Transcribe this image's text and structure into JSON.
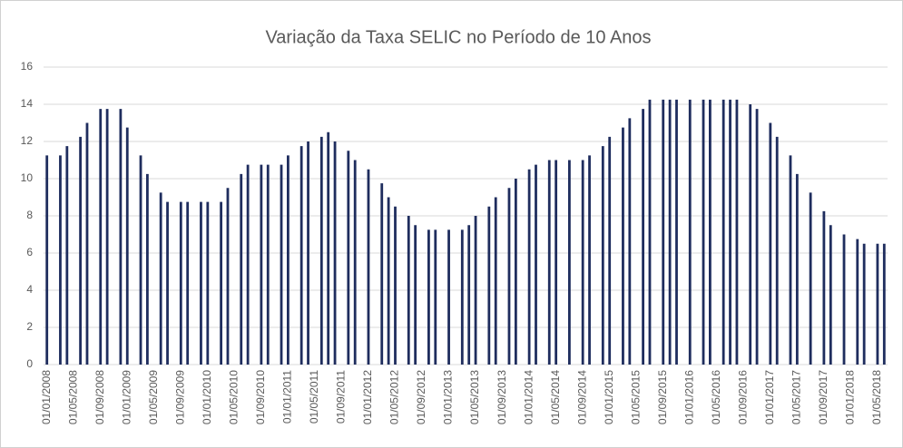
{
  "chart_data": {
    "type": "bar",
    "title": "Variação da Taxa SELIC no Período de 10 Anos",
    "categories": [
      "01/01/2008",
      null,
      null,
      null,
      "01/05/2008",
      null,
      null,
      null,
      "01/09/2008",
      null,
      null,
      null,
      "01/01/2009",
      null,
      null,
      null,
      "01/05/2009",
      null,
      null,
      null,
      "01/09/2009",
      null,
      null,
      null,
      "01/01/2010",
      null,
      null,
      null,
      "01/05/2010",
      null,
      null,
      null,
      "01/09/2010",
      null,
      null,
      null,
      "01/01/2011",
      null,
      null,
      null,
      "01/05/2011",
      null,
      null,
      null,
      "01/09/2011",
      null,
      null,
      null,
      "01/01/2012",
      null,
      null,
      null,
      "01/05/2012",
      null,
      null,
      null,
      "01/09/2012",
      null,
      null,
      null,
      "01/01/2013",
      null,
      null,
      null,
      "01/05/2013",
      null,
      null,
      null,
      "01/09/2013",
      null,
      null,
      null,
      "01/01/2014",
      null,
      null,
      null,
      "01/05/2014",
      null,
      null,
      null,
      "01/09/2014",
      null,
      null,
      null,
      "01/01/2015",
      null,
      null,
      null,
      "01/05/2015",
      null,
      null,
      null,
      "01/09/2015",
      null,
      null,
      null,
      "01/01/2016",
      null,
      null,
      null,
      "01/05/2016",
      null,
      null,
      null,
      "01/09/2016",
      null,
      null,
      null,
      "01/01/2017",
      null,
      null,
      null,
      "01/05/2017",
      null,
      null,
      null,
      "01/09/2017",
      null,
      null,
      null,
      "01/01/2018",
      null,
      null,
      null,
      "01/05/2018",
      null
    ],
    "values": [
      11.25,
      null,
      11.25,
      11.75,
      null,
      12.25,
      13,
      null,
      13.75,
      13.75,
      null,
      13.75,
      12.75,
      null,
      11.25,
      10.25,
      null,
      9.25,
      8.75,
      null,
      8.75,
      8.75,
      null,
      8.75,
      8.75,
      null,
      8.75,
      9.5,
      null,
      10.25,
      10.75,
      null,
      10.75,
      10.75,
      null,
      10.75,
      11.25,
      null,
      11.75,
      12,
      null,
      12.25,
      12.5,
      12,
      null,
      11.5,
      11,
      null,
      10.5,
      null,
      9.75,
      9,
      8.5,
      null,
      8,
      7.5,
      null,
      7.25,
      7.25,
      null,
      7.25,
      null,
      7.25,
      7.5,
      8,
      null,
      8.5,
      9,
      null,
      9.5,
      10,
      null,
      10.5,
      10.75,
      null,
      11,
      11,
      null,
      11,
      null,
      11,
      11.25,
      null,
      11.75,
      12.25,
      null,
      12.75,
      13.25,
      null,
      13.75,
      14.25,
      null,
      14.25,
      14.25,
      14.25,
      null,
      14.25,
      null,
      14.25,
      14.25,
      null,
      14.25,
      14.25,
      14.25,
      null,
      14,
      13.75,
      null,
      13,
      12.25,
      null,
      11.25,
      10.25,
      null,
      9.25,
      null,
      8.25,
      7.5,
      null,
      7,
      null,
      6.75,
      6.5,
      null,
      6.5,
      6.5
    ],
    "color": "#1f2d5e",
    "ylim": [
      0,
      16
    ],
    "yticks": [
      0,
      2,
      4,
      6,
      8,
      10,
      12,
      14,
      16
    ],
    "grid": true
  }
}
